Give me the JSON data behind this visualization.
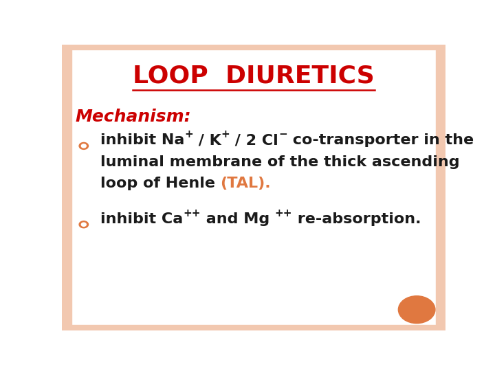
{
  "title": "LOOP  DIURETICS",
  "title_color": "#CC0000",
  "title_fontsize": 26,
  "mechanism_label": "Mechanism:",
  "mechanism_color": "#CC0000",
  "mechanism_fontsize": 18,
  "bullet_color": "#E07840",
  "bullet1_line2": "luminal membrane of the thick ascending",
  "bullet1_line3_part1": "loop of Henle ",
  "bullet1_line3_part2": "(TAL).",
  "bullet1_tal_color": "#E07840",
  "body_fontsize": 16,
  "background_color": "#FFFFFF",
  "border_color": "#F2C8B0",
  "orange_circle_color": "#E07840",
  "text_color": "#1a1a1a"
}
